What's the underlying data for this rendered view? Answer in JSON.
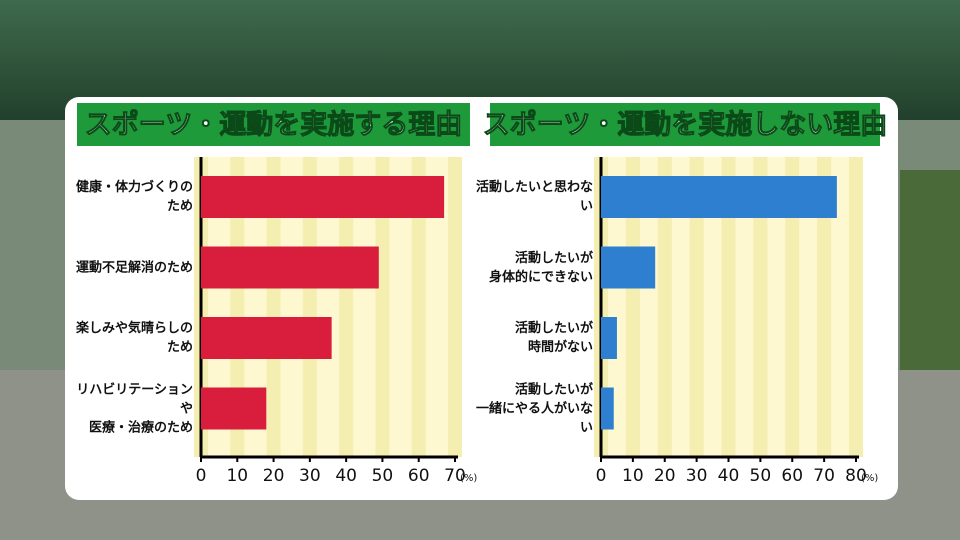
{
  "chart_data": [
    {
      "type": "bar",
      "orientation": "horizontal",
      "title": "スポーツ・運動を実施する理由",
      "categories": [
        "健康・体力づくりのため",
        "運動不足解消のため",
        "楽しみや気晴らしのため",
        "リハビリテーションや\n医療・治療のため"
      ],
      "values": [
        67,
        49,
        36,
        18
      ],
      "color": "#d81e3c",
      "xlim": [
        0,
        70
      ],
      "xticks": [
        0,
        10,
        20,
        30,
        40,
        50,
        60,
        70
      ],
      "unit": "(%)",
      "grid": true
    },
    {
      "type": "bar",
      "orientation": "horizontal",
      "title": "スポーツ・運動を実施しない理由",
      "categories": [
        "活動したいと思わない",
        "活動したいが\n身体的にできない",
        "活動したいが\n時間がない",
        "活動したいが\n一緒にやる人がいない"
      ],
      "values": [
        74,
        17,
        5,
        4
      ],
      "color": "#2f7fd0",
      "xlim": [
        0,
        80
      ],
      "xticks": [
        0,
        10,
        20,
        30,
        40,
        50,
        60,
        70,
        80
      ],
      "unit": "(%)",
      "grid": true
    }
  ]
}
